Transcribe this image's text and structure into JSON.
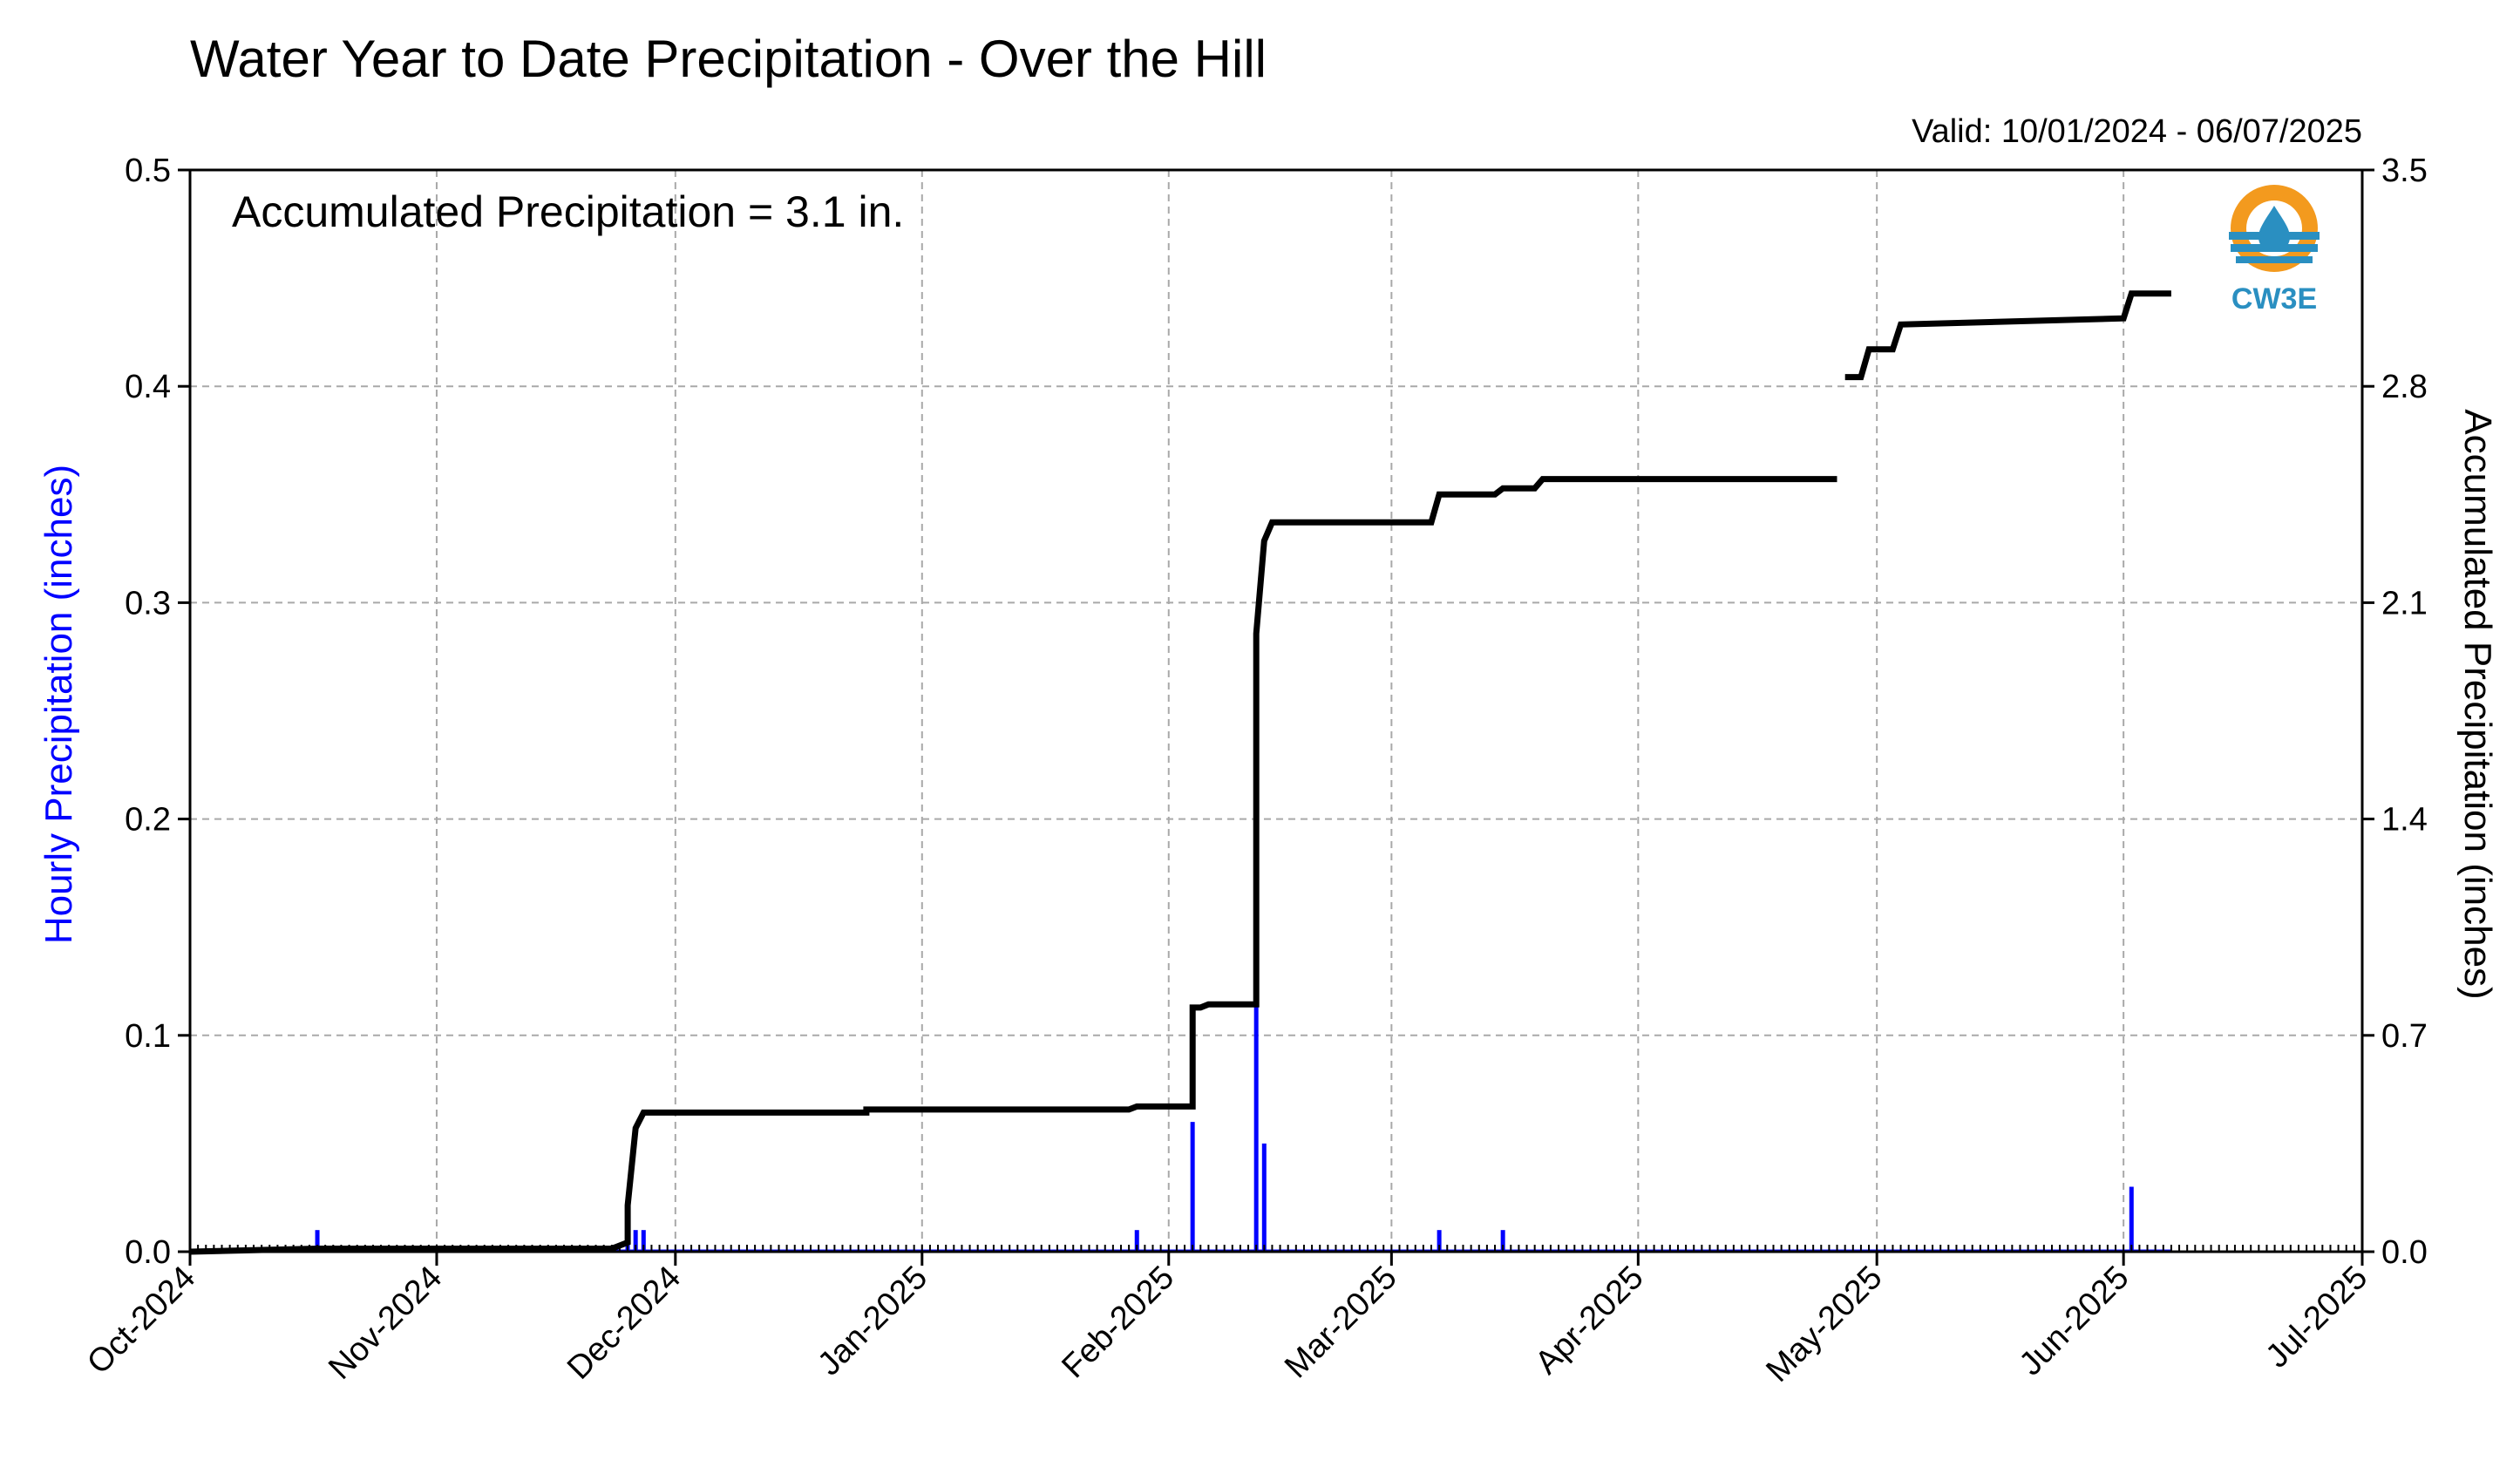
{
  "chart_data": {
    "type": "bar+line",
    "title": "Water Year to Date Precipitation - Over the Hill",
    "valid_text": "Valid: 10/01/2024 - 06/07/2025",
    "annotation": "Accumulated Precipitation = 3.1 in.",
    "y_left_label": "Hourly Precipitation (inches)",
    "y_right_label": "Accumulated Precipitation (inches)",
    "y_left_ticks": [
      "0.0",
      "0.1",
      "0.2",
      "0.3",
      "0.4",
      "0.5"
    ],
    "y_right_ticks": [
      "0.0",
      "0.7",
      "1.4",
      "2.1",
      "2.8",
      "3.5"
    ],
    "y_left_lim": [
      0,
      0.5
    ],
    "y_right_lim": [
      0,
      3.5
    ],
    "x_ticks": [
      "Oct-2024",
      "Nov-2024",
      "Dec-2024",
      "Jan-2025",
      "Feb-2025",
      "Mar-2025",
      "Apr-2025",
      "May-2025",
      "Jun-2025",
      "Jul-2025"
    ],
    "x_lim": [
      "2024-10-01",
      "2025-07-01"
    ],
    "grid": true,
    "colors": {
      "hourly": "#0000ff",
      "accumulated": "#000000",
      "grid": "#a9a9a9",
      "left_label": "#0000ff"
    },
    "hourly_series": {
      "name": "Hourly Precipitation",
      "x": [
        "2024-10-17",
        "2024-11-25",
        "2024-11-26",
        "2024-11-27",
        "2025-01-28",
        "2025-02-04",
        "2025-02-12",
        "2025-02-13",
        "2025-03-07",
        "2025-03-15",
        "2025-06-02"
      ],
      "values": [
        0.01,
        0.02,
        0.01,
        0.01,
        0.01,
        0.06,
        0.12,
        0.05,
        0.01,
        0.01,
        0.03
      ]
    },
    "accumulated_series": {
      "name": "Accumulated Precipitation",
      "segments": [
        {
          "x": [
            "2024-10-01",
            "2024-10-17",
            "2024-11-23",
            "2024-11-25",
            "2024-11-25",
            "2024-11-26",
            "2024-11-27",
            "2024-12-25",
            "2024-12-25",
            "2025-01-27",
            "2025-01-28",
            "2025-02-04",
            "2025-02-04",
            "2025-02-05",
            "2025-02-06",
            "2025-02-12",
            "2025-02-12",
            "2025-02-12",
            "2025-02-13",
            "2025-02-14",
            "2025-03-06",
            "2025-03-07",
            "2025-03-14",
            "2025-03-15",
            "2025-03-19",
            "2025-03-20",
            "2025-04-26"
          ],
          "y": [
            0.0,
            0.01,
            0.01,
            0.03,
            0.15,
            0.4,
            0.45,
            0.45,
            0.46,
            0.46,
            0.47,
            0.47,
            0.79,
            0.79,
            0.8,
            0.8,
            1.3,
            2.0,
            2.3,
            2.36,
            2.36,
            2.45,
            2.45,
            2.47,
            2.47,
            2.5,
            2.5
          ]
        },
        {
          "x": [
            "2025-04-27",
            "2025-04-29",
            "2025-04-30",
            "2025-05-03",
            "2025-05-04",
            "2025-06-01",
            "2025-06-02",
            "2025-06-07"
          ],
          "y": [
            2.83,
            2.83,
            2.92,
            2.92,
            3.0,
            3.02,
            3.1,
            3.1
          ]
        }
      ]
    }
  },
  "logo": {
    "text": "CW3E",
    "colors": {
      "orange": "#f39a1e",
      "blue": "#2a8fc1"
    }
  }
}
